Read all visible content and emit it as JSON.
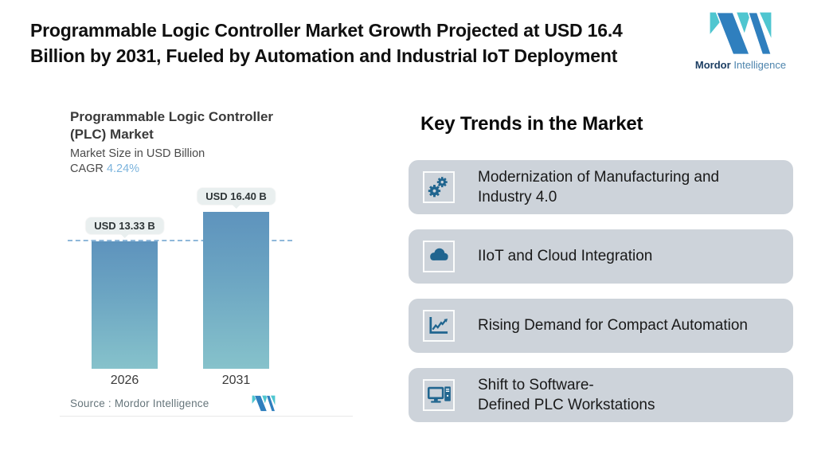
{
  "header": {
    "title_lines": [
      "Programmable Logic Controller Market Growth Projected at USD 16.4",
      "Billion by 2031, Fueled by Automation and Industrial IoT Deployment"
    ],
    "logo": {
      "bold": "Mordor",
      "light": "Intelligence"
    }
  },
  "chart": {
    "title_lines": [
      "Programmable Logic Controller",
      "(PLC) Market"
    ],
    "subtitle": "Market Size in USD Billion",
    "cagr_label": "CAGR",
    "cagr_value": "4.24%",
    "source": "Source :  Mordor Intelligence"
  },
  "chart_data": {
    "type": "bar",
    "title": "Programmable Logic Controller (PLC) Market",
    "subtitle": "Market Size in USD Billion",
    "cagr_percent": 4.24,
    "categories": [
      "2026",
      "2031"
    ],
    "values": [
      13.33,
      16.4
    ],
    "data_labels": [
      "USD 13.33 B",
      "USD 16.40 B"
    ],
    "unit": "USD Billion",
    "ylim": [
      0,
      18
    ],
    "grid": false,
    "legend": "none",
    "reference_line": 13.33,
    "bar_gradient": [
      "#5e93bd",
      "#86c2cb"
    ]
  },
  "trends": {
    "heading": "Key Trends in the Market",
    "cards": [
      {
        "icon": "gears-icon",
        "lines": [
          "Modernization of Manufacturing and",
          "Industry 4.0"
        ]
      },
      {
        "icon": "cloud-icon",
        "lines": [
          "IIoT and Cloud Integration",
          ""
        ]
      },
      {
        "icon": "line-chart-icon",
        "lines": [
          "Rising Demand for Compact Automation",
          ""
        ]
      },
      {
        "icon": "workstation-icon",
        "lines": [
          "Shift to Software-",
          "Defined PLC Workstations"
        ]
      }
    ]
  },
  "colors": {
    "card_bg": "#cdd3da",
    "icon_color": "#20658f",
    "bar_top": "#5e93bd",
    "bar_bottom": "#86c2cb",
    "dashed_line": "#8fb8da",
    "cagr_value_color": "#7cb4dd",
    "pill_bg": "#e9efef",
    "logo_teal": "#4fc6d0",
    "logo_blue": "#2f7fbe",
    "logo_navy": "#1c3e63"
  }
}
